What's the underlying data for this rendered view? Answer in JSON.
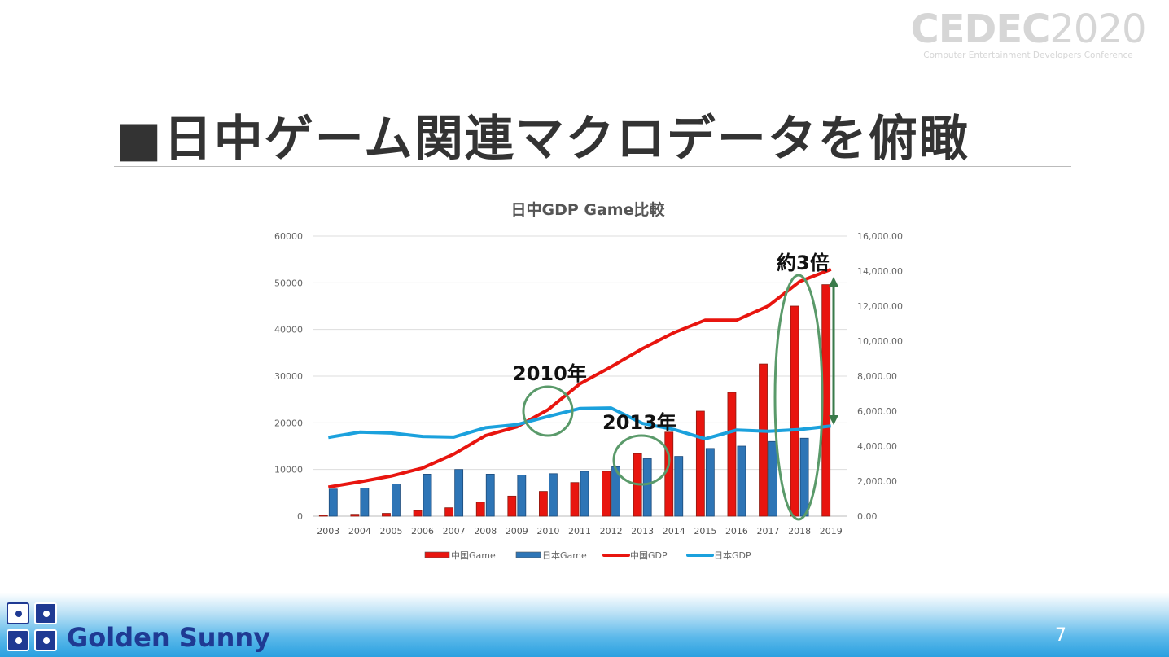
{
  "header": {
    "logo_main": "CEDEC",
    "logo_year": "2020",
    "logo_subtitle": "Computer Entertainment Developers Conference"
  },
  "slide": {
    "title": "■日中ゲーム関連マクロデータを俯瞰",
    "page_number": "7"
  },
  "footer": {
    "company": "Golden Sunny"
  },
  "annotations": {
    "a2010": "2010年",
    "a2013": "2013年",
    "ratio": "約3倍"
  },
  "colors": {
    "china_game": "#e8150f",
    "japan_game": "#2e75b6",
    "china_gdp": "#e8150f",
    "japan_gdp": "#1ba1dd",
    "annotation": "#5a9a6a"
  },
  "chart_data": {
    "type": "bar+line",
    "title": "日中GDP Game比較",
    "categories": [
      "2003",
      "2004",
      "2005",
      "2006",
      "2007",
      "2008",
      "2009",
      "2010",
      "2011",
      "2012",
      "2013",
      "2014",
      "2015",
      "2016",
      "2017",
      "2018",
      "2019"
    ],
    "y_left": {
      "min": 0,
      "max": 60000,
      "ticks": [
        "0",
        "10000",
        "20000",
        "30000",
        "40000",
        "50000",
        "60000"
      ]
    },
    "y_right": {
      "min": 0,
      "max": 16000,
      "ticks": [
        "0.00",
        "2,000.00",
        "4,000.00",
        "6,000.00",
        "8,000.00",
        "10,000.00",
        "12,000.00",
        "14,000.00",
        "16,000.00"
      ]
    },
    "grid": true,
    "legend_position": "bottom",
    "series": [
      {
        "name": "中国Game",
        "type": "bar",
        "axis": "left",
        "values": [
          200,
          400,
          600,
          1200,
          1800,
          3000,
          4300,
          5300,
          7200,
          9600,
          13400,
          18000,
          22500,
          26500,
          32600,
          45000,
          49600
        ]
      },
      {
        "name": "日本Game",
        "type": "bar",
        "axis": "left",
        "values": [
          5800,
          6000,
          6900,
          9000,
          10000,
          9000,
          8800,
          9100,
          9600,
          10600,
          12300,
          12800,
          14500,
          15000,
          16000,
          16700,
          null
        ]
      },
      {
        "name": "中国GDP",
        "type": "line",
        "axis": "right",
        "values": [
          1660,
          1960,
          2290,
          2750,
          3550,
          4600,
          5100,
          6090,
          7550,
          8530,
          9570,
          10480,
          11200,
          11200,
          12000,
          13400,
          14100
        ]
      },
      {
        "name": "日本GDP",
        "type": "line",
        "axis": "right",
        "values": [
          4500,
          4800,
          4750,
          4550,
          4520,
          5050,
          5230,
          5700,
          6150,
          6180,
          5300,
          4950,
          4420,
          4920,
          4850,
          4950,
          5150
        ]
      }
    ]
  }
}
